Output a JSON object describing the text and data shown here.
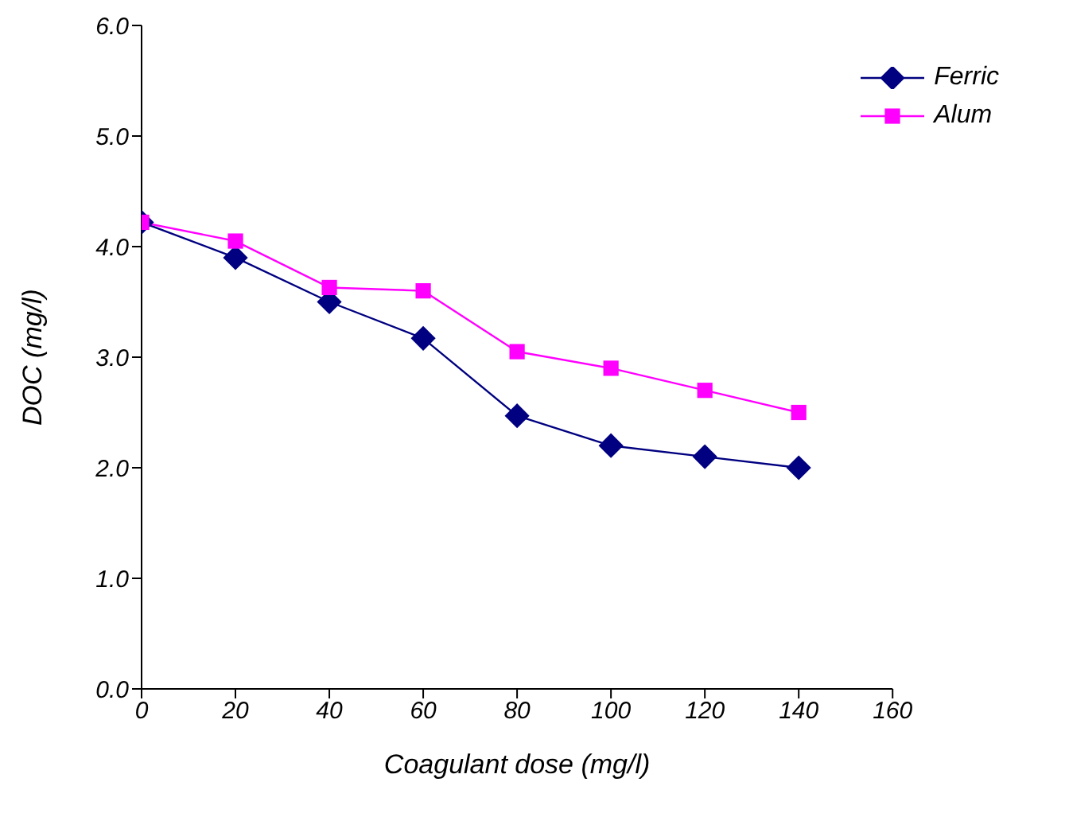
{
  "chart_data": {
    "type": "line",
    "xlabel": "Coagulant dose (mg/l)",
    "ylabel": "DOC (mg/l)",
    "x": [
      0,
      20,
      40,
      60,
      80,
      100,
      120,
      140
    ],
    "series": [
      {
        "name": "Ferric",
        "color": "#000080",
        "marker": "diamond",
        "values": [
          4.22,
          3.9,
          3.5,
          3.17,
          2.47,
          2.2,
          2.1,
          2.0
        ]
      },
      {
        "name": "Alum",
        "color": "#ff00ff",
        "marker": "square",
        "values": [
          4.22,
          4.05,
          3.63,
          3.6,
          3.05,
          2.9,
          2.7,
          2.5
        ]
      }
    ],
    "xlim": [
      0,
      160
    ],
    "xticks": [
      0,
      20,
      40,
      60,
      80,
      100,
      120,
      140,
      160
    ],
    "ylim": [
      0,
      6
    ],
    "yticks": [
      {
        "value": 0,
        "label": "0.0"
      },
      {
        "value": 1,
        "label": "1.0"
      },
      {
        "value": 2,
        "label": "2.0"
      },
      {
        "value": 3,
        "label": "3.0"
      },
      {
        "value": 4,
        "label": "4.0"
      },
      {
        "value": 5,
        "label": "5.0"
      },
      {
        "value": 6,
        "label": "6.0"
      }
    ],
    "grid": false,
    "legend": "top right",
    "line_style": "solid"
  }
}
